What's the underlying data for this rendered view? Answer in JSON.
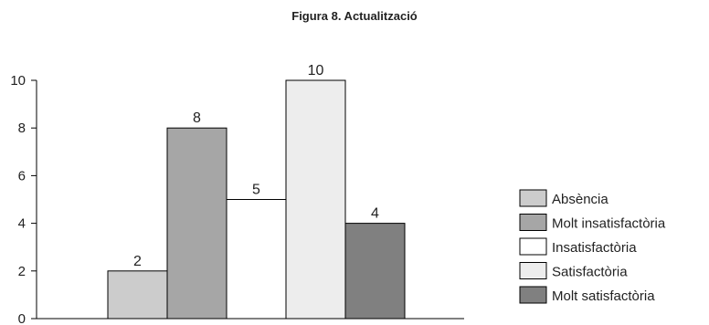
{
  "chart_data": {
    "type": "bar",
    "title": "Figura 8. Actualització",
    "xlabel": "",
    "ylabel": "",
    "ylim": [
      0,
      10
    ],
    "yticks": [
      0,
      2,
      4,
      6,
      8,
      10
    ],
    "grid": false,
    "legend_position": "right",
    "categories": [
      "Absència",
      "Molt insatisfactòria",
      "Insatisfactòria",
      "Satisfactòria",
      "Molt satisfactòria"
    ],
    "series": [
      {
        "values": [
          2,
          8,
          5,
          10,
          4
        ]
      }
    ],
    "data_labels": [
      "2",
      "8",
      "5",
      "10",
      "4"
    ],
    "colors": [
      "#cccccc",
      "#a6a6a6",
      "#ffffff",
      "#ededed",
      "#808080"
    ]
  }
}
